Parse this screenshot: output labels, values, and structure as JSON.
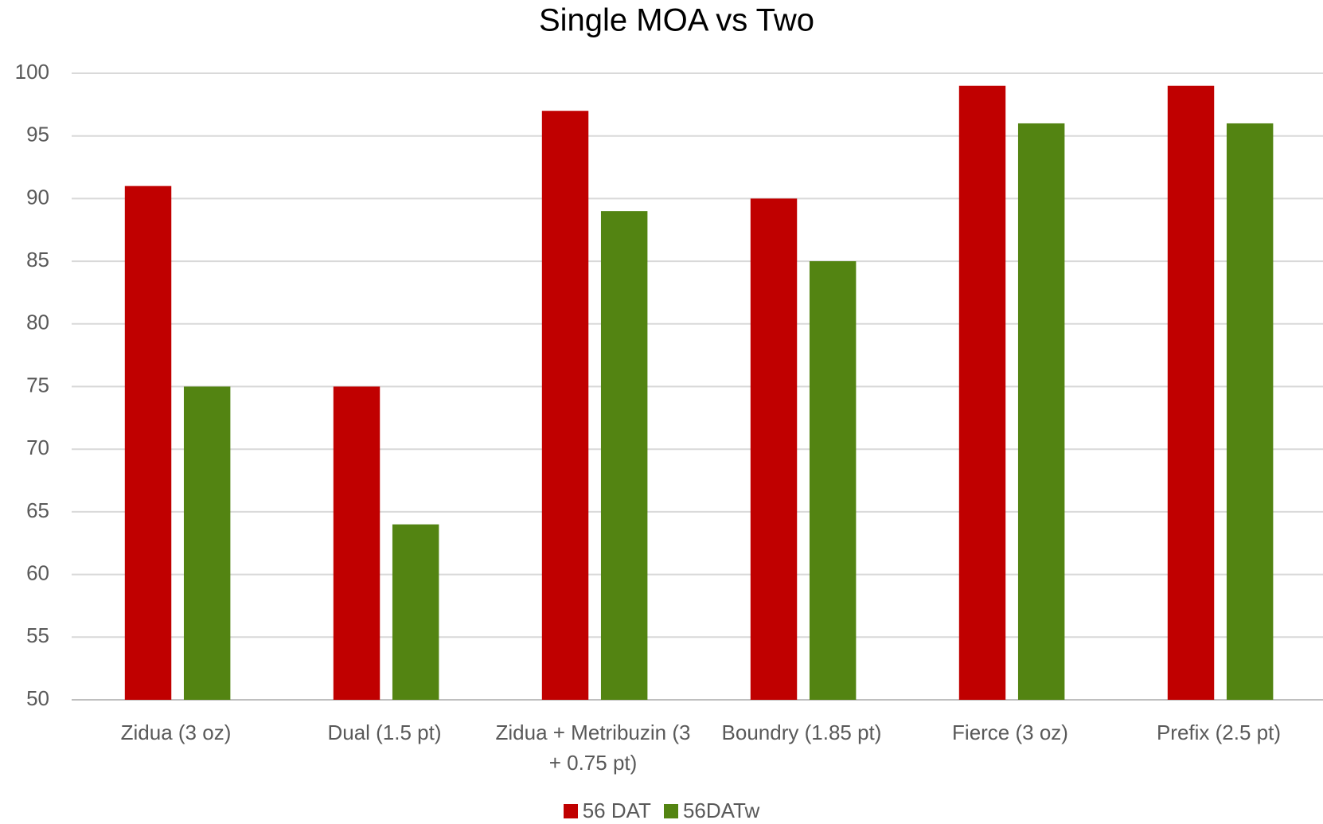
{
  "chart_data": {
    "type": "bar",
    "title": "Single MOA vs Two",
    "categories": [
      "Zidua (3 oz)",
      "Dual (1.5 pt)",
      "Zidua + Metribuzin (3 + 0.75 pt)",
      "Boundry (1.85 pt)",
      "Fierce (3 oz)",
      "Prefix (2.5 pt)"
    ],
    "series": [
      {
        "name": "56 DAT",
        "color": "#c00000",
        "values": [
          91,
          75,
          97,
          90,
          99,
          99
        ]
      },
      {
        "name": "56DATw",
        "color": "#538412",
        "values": [
          75,
          64,
          89,
          85,
          96,
          96
        ]
      }
    ],
    "ylim": [
      50,
      100
    ],
    "yticks": [
      50,
      55,
      60,
      65,
      70,
      75,
      80,
      85,
      90,
      95,
      100
    ],
    "grid": true,
    "legend": "bottom"
  }
}
